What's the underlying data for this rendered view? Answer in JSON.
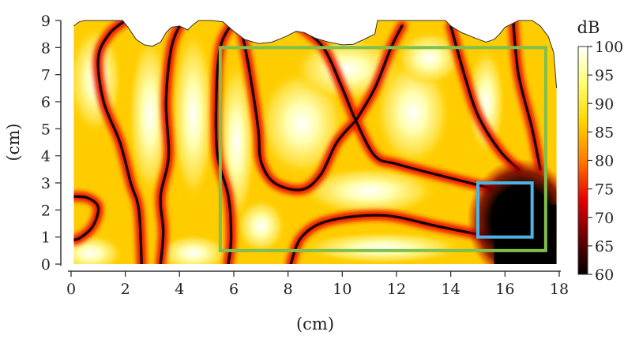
{
  "chart_data": {
    "type": "heatmap",
    "title": "",
    "xlabel": "(cm)",
    "ylabel": "(cm)",
    "xlim": [
      0,
      18
    ],
    "ylim": [
      0,
      9
    ],
    "xticks": [
      "0",
      "2",
      "4",
      "6",
      "8",
      "10",
      "12",
      "14",
      "16",
      "18"
    ],
    "yticks": [
      "0",
      "1",
      "2",
      "3",
      "4",
      "5",
      "6",
      "7",
      "8",
      "9"
    ],
    "colorbar": {
      "label": "dB",
      "range": [
        60,
        100
      ],
      "ticks": [
        "60",
        "65",
        "70",
        "75",
        "80",
        "85",
        "90",
        "95",
        "100"
      ],
      "colormap": [
        "#000000",
        "#6e0000",
        "#e60000",
        "#ff7a00",
        "#ffd600",
        "#ffff70",
        "#ffffff"
      ]
    },
    "top_boundary_cm": [
      [
        0.1,
        8.8
      ],
      [
        0.3,
        8.95
      ],
      [
        0.5,
        9.0
      ],
      [
        1.0,
        9.0
      ],
      [
        1.5,
        9.0
      ],
      [
        1.9,
        9.0
      ],
      [
        2.1,
        8.75
      ],
      [
        2.4,
        8.3
      ],
      [
        2.7,
        8.1
      ],
      [
        3.0,
        8.05
      ],
      [
        3.3,
        8.2
      ],
      [
        3.5,
        8.55
      ],
      [
        3.7,
        8.75
      ],
      [
        4.0,
        8.8
      ],
      [
        4.3,
        8.65
      ],
      [
        4.5,
        8.85
      ],
      [
        4.7,
        9.0
      ],
      [
        5.2,
        9.0
      ],
      [
        5.6,
        8.95
      ],
      [
        6.0,
        8.6
      ],
      [
        6.4,
        8.3
      ],
      [
        6.9,
        8.15
      ],
      [
        7.4,
        8.2
      ],
      [
        7.9,
        8.4
      ],
      [
        8.3,
        8.6
      ],
      [
        8.6,
        8.55
      ],
      [
        9.0,
        8.35
      ],
      [
        9.5,
        8.2
      ],
      [
        10.0,
        8.1
      ],
      [
        10.4,
        8.12
      ],
      [
        10.8,
        8.3
      ],
      [
        11.2,
        8.5
      ],
      [
        11.3,
        9.0
      ],
      [
        12.0,
        9.0
      ],
      [
        13.0,
        9.0
      ],
      [
        13.8,
        9.0
      ],
      [
        14.0,
        8.8
      ],
      [
        14.4,
        8.55
      ],
      [
        14.9,
        8.35
      ],
      [
        15.3,
        8.2
      ],
      [
        15.6,
        8.3
      ],
      [
        15.8,
        8.5
      ],
      [
        16.0,
        8.75
      ],
      [
        16.5,
        9.0
      ],
      [
        17.0,
        9.0
      ],
      [
        17.3,
        8.8
      ],
      [
        17.6,
        8.4
      ],
      [
        17.8,
        7.8
      ],
      [
        17.9,
        6.5
      ]
    ],
    "nodal_lines_cm": [
      [
        [
          0,
          2.5
        ],
        [
          0.6,
          2.45
        ],
        [
          1.0,
          2.1
        ],
        [
          0.8,
          1.4
        ],
        [
          0.3,
          0.95
        ],
        [
          0,
          0.9
        ]
      ],
      [
        [
          2.0,
          9.0
        ],
        [
          1.4,
          8.5
        ],
        [
          1.0,
          7.6
        ],
        [
          1.2,
          6.0
        ],
        [
          1.8,
          4.5
        ],
        [
          2.2,
          3.0
        ],
        [
          2.5,
          2.0
        ],
        [
          2.6,
          0.0
        ]
      ],
      [
        [
          4.1,
          9.0
        ],
        [
          3.7,
          8.0
        ],
        [
          3.5,
          6.0
        ],
        [
          3.6,
          4.0
        ],
        [
          3.3,
          2.5
        ],
        [
          3.4,
          1.2
        ],
        [
          3.3,
          0.0
        ]
      ],
      [
        [
          6.0,
          9.0
        ],
        [
          5.5,
          8.0
        ],
        [
          5.35,
          6.0
        ],
        [
          5.4,
          4.0
        ],
        [
          5.8,
          2.5
        ],
        [
          5.9,
          1.0
        ],
        [
          5.8,
          0.0
        ]
      ],
      [
        [
          6.3,
          8.6
        ],
        [
          6.6,
          7.0
        ],
        [
          6.9,
          5.0
        ],
        [
          7.0,
          3.8
        ],
        [
          7.5,
          3.0
        ],
        [
          8.5,
          2.75
        ],
        [
          9.2,
          3.3
        ],
        [
          9.8,
          4.5
        ],
        [
          10.5,
          5.3
        ]
      ],
      [
        [
          8.4,
          8.8
        ],
        [
          9.3,
          8.0
        ],
        [
          10.0,
          6.5
        ],
        [
          10.5,
          5.3
        ],
        [
          11.2,
          4.0
        ],
        [
          12.0,
          3.7
        ],
        [
          13.5,
          3.3
        ],
        [
          15.5,
          2.8
        ]
      ],
      [
        [
          10.5,
          5.3
        ],
        [
          11.2,
          6.5
        ],
        [
          11.8,
          8.0
        ],
        [
          12.2,
          8.8
        ]
      ],
      [
        [
          8.1,
          0.0
        ],
        [
          8.5,
          1.0
        ],
        [
          9.5,
          1.6
        ],
        [
          11.5,
          1.8
        ],
        [
          13.5,
          1.4
        ],
        [
          15.5,
          1.0
        ]
      ],
      [
        [
          14.0,
          8.8
        ],
        [
          14.5,
          7.0
        ],
        [
          15.0,
          5.5
        ],
        [
          15.8,
          4.2
        ],
        [
          16.5,
          3.5
        ]
      ],
      [
        [
          16.3,
          9.0
        ],
        [
          16.5,
          7.0
        ],
        [
          17.0,
          5.0
        ],
        [
          17.3,
          3.5
        ]
      ]
    ],
    "annotations": [
      {
        "shape": "rectangle",
        "color": "#7fbf4d",
        "x": [
          5.5,
          17.5
        ],
        "y": [
          0.5,
          8.0
        ]
      },
      {
        "shape": "rectangle",
        "color": "#4bb3e6",
        "x": [
          15.0,
          17.0
        ],
        "y": [
          1.0,
          3.0
        ]
      }
    ]
  }
}
